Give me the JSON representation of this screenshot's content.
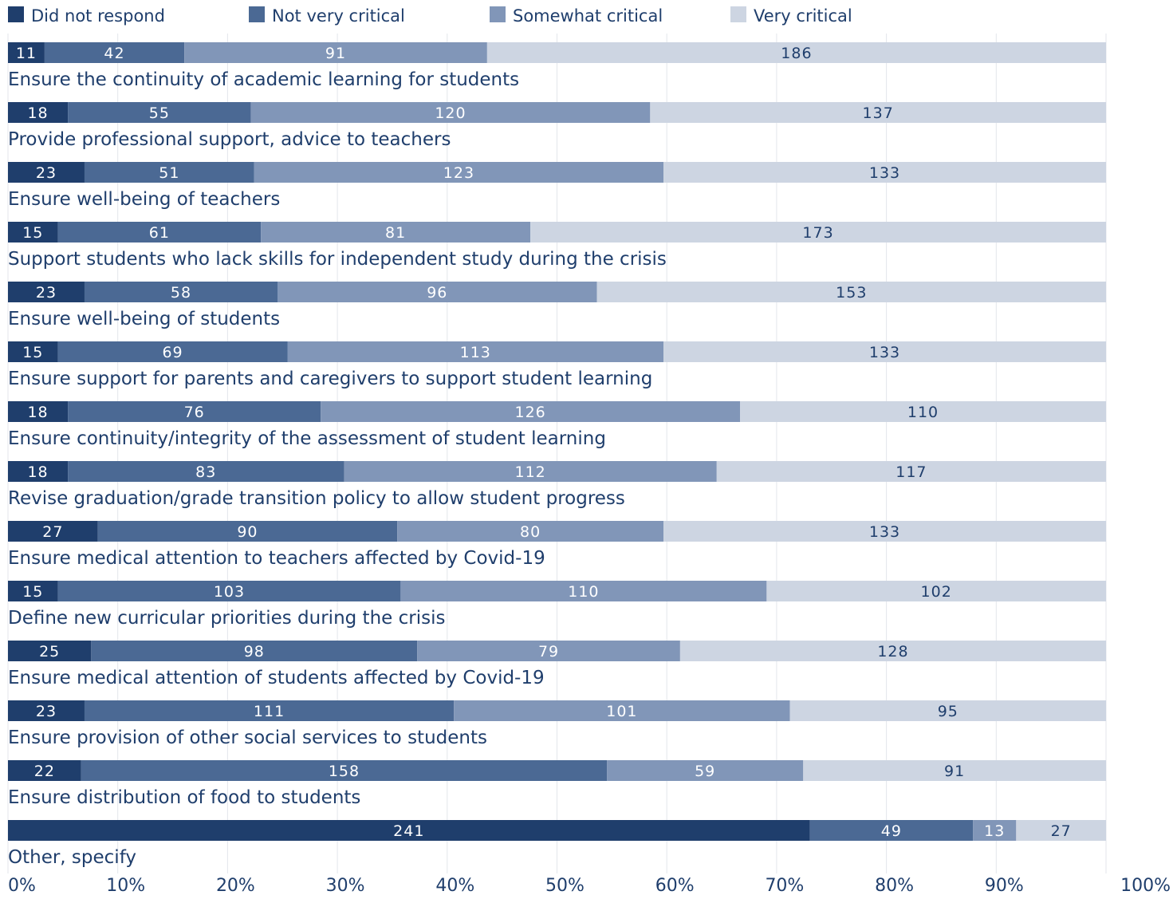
{
  "colors": {
    "did_not_respond": "#1f3e6c",
    "not_very_critical": "#4b6994",
    "somewhat_critical": "#8196b8",
    "very_critical": "#cdd5e2",
    "category_text": "#1f3e6c",
    "grid": "#e3e6eb",
    "tick_text": "#1f3e6c"
  },
  "chart_data": {
    "type": "bar",
    "orientation": "horizontal",
    "stacked": "100%",
    "legend_position": "top",
    "grid": true,
    "xlim": [
      0,
      100
    ],
    "x_ticks": [
      "0%",
      "10%",
      "20%",
      "30%",
      "40%",
      "50%",
      "60%",
      "70%",
      "80%",
      "90%",
      "100%"
    ],
    "categories": [
      "Ensure the continuity of academic learning for students",
      "Provide professional support, advice to teachers",
      "Ensure well-being of teachers",
      "Support students who lack skills for independent study during the crisis",
      "Ensure well-being of students",
      "Ensure support for parents and caregivers to support student learning",
      "Ensure continuity/integrity of the assessment of student learning",
      "Revise graduation/grade transition policy to allow student progress",
      "Ensure medical attention to teachers affected by Covid-19",
      "Define new curricular priorities during the crisis",
      "Ensure medical attention of students affected by Covid-19",
      "Ensure provision of other social services to students",
      "Ensure distribution of food to students",
      "Other, specify"
    ],
    "series": [
      {
        "name": "Did not respond",
        "values": [
          11,
          18,
          23,
          15,
          23,
          15,
          18,
          18,
          27,
          15,
          25,
          23,
          22,
          241
        ]
      },
      {
        "name": "Not very critical",
        "values": [
          42,
          55,
          51,
          61,
          58,
          69,
          76,
          83,
          90,
          103,
          98,
          111,
          158,
          49
        ]
      },
      {
        "name": "Somewhat critical",
        "values": [
          91,
          120,
          123,
          81,
          96,
          113,
          126,
          112,
          80,
          110,
          79,
          101,
          59,
          13
        ]
      },
      {
        "name": "Very critical",
        "values": [
          186,
          137,
          133,
          173,
          153,
          133,
          110,
          117,
          133,
          102,
          128,
          95,
          91,
          27
        ]
      }
    ]
  }
}
